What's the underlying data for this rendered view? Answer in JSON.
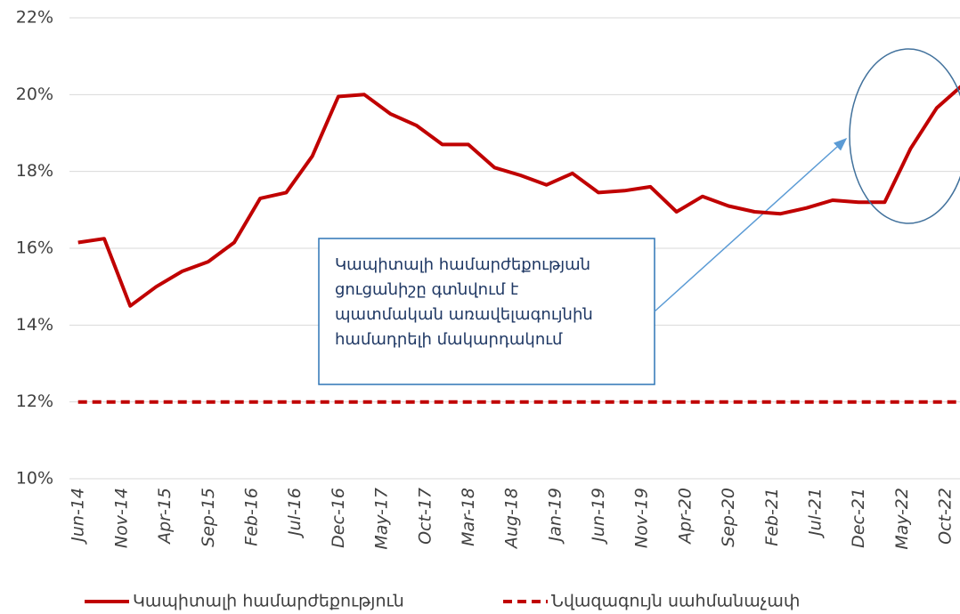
{
  "chart_data": {
    "type": "line",
    "x": [
      "2014-06",
      "2014-09",
      "2014-12",
      "2015-03",
      "2015-06",
      "2015-09",
      "2015-12",
      "2016-03",
      "2016-06",
      "2016-09",
      "2016-12",
      "2017-03",
      "2017-06",
      "2017-09",
      "2017-12",
      "2018-03",
      "2018-06",
      "2018-09",
      "2018-12",
      "2019-03",
      "2019-06",
      "2019-09",
      "2019-12",
      "2020-03",
      "2020-06",
      "2020-09",
      "2020-12",
      "2021-03",
      "2021-06",
      "2021-09",
      "2021-12",
      "2022-03",
      "2022-06",
      "2022-09",
      "2022-12"
    ],
    "series": [
      {
        "name": "Կապիտալի համարժեքություն",
        "color": "#c00000",
        "style": "solid",
        "values": [
          16.15,
          16.25,
          14.5,
          15.0,
          15.4,
          15.65,
          16.15,
          17.3,
          17.45,
          18.4,
          19.95,
          20.0,
          19.5,
          19.2,
          18.7,
          18.7,
          18.1,
          17.9,
          17.65,
          17.95,
          17.45,
          17.5,
          17.6,
          16.95,
          17.35,
          17.1,
          16.95,
          16.9,
          17.05,
          17.25,
          17.2,
          17.2,
          18.6,
          19.65,
          20.25
        ]
      },
      {
        "name": "Նվազագույն սահմանաչափ",
        "color": "#c00000",
        "style": "dashed",
        "values": [
          12,
          12,
          12,
          12,
          12,
          12,
          12,
          12,
          12,
          12,
          12,
          12,
          12,
          12,
          12,
          12,
          12,
          12,
          12,
          12,
          12,
          12,
          12,
          12,
          12,
          12,
          12,
          12,
          12,
          12,
          12,
          12,
          12,
          12,
          12
        ]
      }
    ],
    "xlim": [
      "2014-05",
      "2022-12"
    ],
    "xticks": [
      {
        "value": "2014-06",
        "label": "Jun-14"
      },
      {
        "value": "2014-11",
        "label": "Nov-14"
      },
      {
        "value": "2015-04",
        "label": "Apr-15"
      },
      {
        "value": "2015-09",
        "label": "Sep-15"
      },
      {
        "value": "2016-02",
        "label": "Feb-16"
      },
      {
        "value": "2016-07",
        "label": "Jul-16"
      },
      {
        "value": "2016-12",
        "label": "Dec-16"
      },
      {
        "value": "2017-05",
        "label": "May-17"
      },
      {
        "value": "2017-10",
        "label": "Oct-17"
      },
      {
        "value": "2018-03",
        "label": "Mar-18"
      },
      {
        "value": "2018-08",
        "label": "Aug-18"
      },
      {
        "value": "2019-01",
        "label": "Jan-19"
      },
      {
        "value": "2019-06",
        "label": "Jun-19"
      },
      {
        "value": "2019-11",
        "label": "Nov-19"
      },
      {
        "value": "2020-04",
        "label": "Apr-20"
      },
      {
        "value": "2020-09",
        "label": "Sep-20"
      },
      {
        "value": "2021-02",
        "label": "Feb-21"
      },
      {
        "value": "2021-07",
        "label": "Jul-21"
      },
      {
        "value": "2021-12",
        "label": "Dec-21"
      },
      {
        "value": "2022-05",
        "label": "May-22"
      },
      {
        "value": "2022-10",
        "label": "Oct-22"
      }
    ],
    "ylim": [
      10,
      22
    ],
    "yticks": [
      {
        "value": 10,
        "label": "10%"
      },
      {
        "value": 12,
        "label": "12%"
      },
      {
        "value": 14,
        "label": "14%"
      },
      {
        "value": 16,
        "label": "16%"
      },
      {
        "value": 18,
        "label": "18%"
      },
      {
        "value": 20,
        "label": "20%"
      },
      {
        "value": 22,
        "label": "22%"
      }
    ],
    "grid": true,
    "legend": "bottom",
    "annotation": [
      "Կապիտալի համարժեքության",
      "ցուցանիշը գտնվում է",
      "պատմական առավելագույնին",
      "համադրելի մակարդակում"
    ]
  }
}
